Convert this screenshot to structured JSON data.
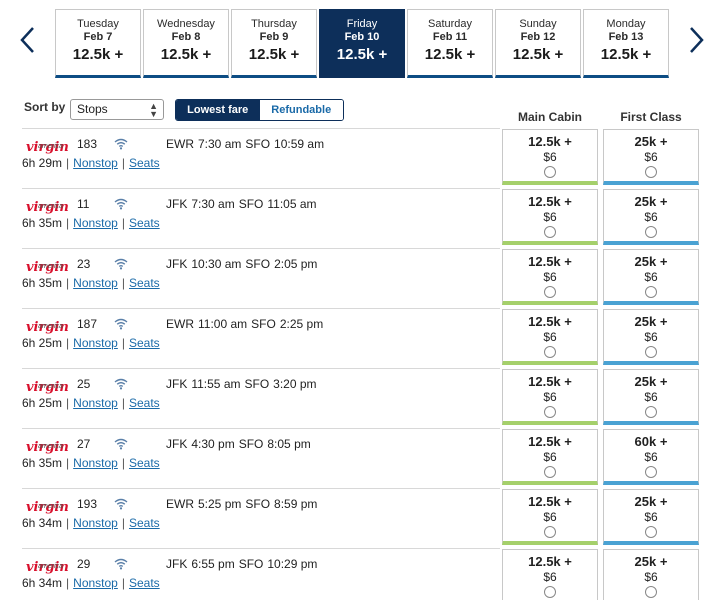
{
  "date_tabs": [
    {
      "day": "Tuesday",
      "date": "Feb 7",
      "fare": "12.5k +",
      "active": false
    },
    {
      "day": "Wednesday",
      "date": "Feb 8",
      "fare": "12.5k +",
      "active": false
    },
    {
      "day": "Thursday",
      "date": "Feb 9",
      "fare": "12.5k +",
      "active": false
    },
    {
      "day": "Friday",
      "date": "Feb 10",
      "fare": "12.5k +",
      "active": true
    },
    {
      "day": "Saturday",
      "date": "Feb 11",
      "fare": "12.5k +",
      "active": false
    },
    {
      "day": "Sunday",
      "date": "Feb 12",
      "fare": "12.5k +",
      "active": false
    },
    {
      "day": "Monday",
      "date": "Feb 13",
      "fare": "12.5k +",
      "active": false
    }
  ],
  "icons": {
    "prev": "chevron-left-icon",
    "next": "chevron-right-icon",
    "wifi": "wifi-icon"
  },
  "colors": {
    "accent": "#0d2f5a",
    "main_cabin_bar": "#a5d06b",
    "first_class_bar": "#4aa2d3",
    "link": "#1a6aa8",
    "logo": "#d8102c"
  },
  "controls": {
    "sort_label": "Sort by",
    "sort_value": "Stops",
    "toggle": {
      "on": "Lowest fare",
      "off": "Refundable"
    }
  },
  "columns": {
    "main": "Main Cabin",
    "first": "First Class"
  },
  "airline": {
    "logo_text": "virgin",
    "logo_sub": "america"
  },
  "flights": [
    {
      "number": "183",
      "from": "EWR",
      "dep": "7:30 am",
      "to": "SFO",
      "arr": "10:59 am",
      "duration": "6h 29m",
      "stops": "Nonstop",
      "seats": "Seats",
      "main_miles": "12.5k +",
      "main_tax": "$6",
      "first_miles": "25k +",
      "first_tax": "$6"
    },
    {
      "number": "11",
      "from": "JFK",
      "dep": "7:30 am",
      "to": "SFO",
      "arr": "11:05 am",
      "duration": "6h 35m",
      "stops": "Nonstop",
      "seats": "Seats",
      "main_miles": "12.5k +",
      "main_tax": "$6",
      "first_miles": "25k +",
      "first_tax": "$6"
    },
    {
      "number": "23",
      "from": "JFK",
      "dep": "10:30 am",
      "to": "SFO",
      "arr": "2:05 pm",
      "duration": "6h 35m",
      "stops": "Nonstop",
      "seats": "Seats",
      "main_miles": "12.5k +",
      "main_tax": "$6",
      "first_miles": "25k +",
      "first_tax": "$6"
    },
    {
      "number": "187",
      "from": "EWR",
      "dep": "11:00 am",
      "to": "SFO",
      "arr": "2:25 pm",
      "duration": "6h 25m",
      "stops": "Nonstop",
      "seats": "Seats",
      "main_miles": "12.5k +",
      "main_tax": "$6",
      "first_miles": "25k +",
      "first_tax": "$6"
    },
    {
      "number": "25",
      "from": "JFK",
      "dep": "11:55 am",
      "to": "SFO",
      "arr": "3:20 pm",
      "duration": "6h 25m",
      "stops": "Nonstop",
      "seats": "Seats",
      "main_miles": "12.5k +",
      "main_tax": "$6",
      "first_miles": "25k +",
      "first_tax": "$6"
    },
    {
      "number": "27",
      "from": "JFK",
      "dep": "4:30 pm",
      "to": "SFO",
      "arr": "8:05 pm",
      "duration": "6h 35m",
      "stops": "Nonstop",
      "seats": "Seats",
      "main_miles": "12.5k +",
      "main_tax": "$6",
      "first_miles": "60k +",
      "first_tax": "$6"
    },
    {
      "number": "193",
      "from": "EWR",
      "dep": "5:25 pm",
      "to": "SFO",
      "arr": "8:59 pm",
      "duration": "6h 34m",
      "stops": "Nonstop",
      "seats": "Seats",
      "main_miles": "12.5k +",
      "main_tax": "$6",
      "first_miles": "25k +",
      "first_tax": "$6"
    },
    {
      "number": "29",
      "from": "JFK",
      "dep": "6:55 pm",
      "to": "SFO",
      "arr": "10:29 pm",
      "duration": "6h 34m",
      "stops": "Nonstop",
      "seats": "Seats",
      "main_miles": "12.5k +",
      "main_tax": "$6",
      "first_miles": "25k +",
      "first_tax": "$6"
    }
  ]
}
